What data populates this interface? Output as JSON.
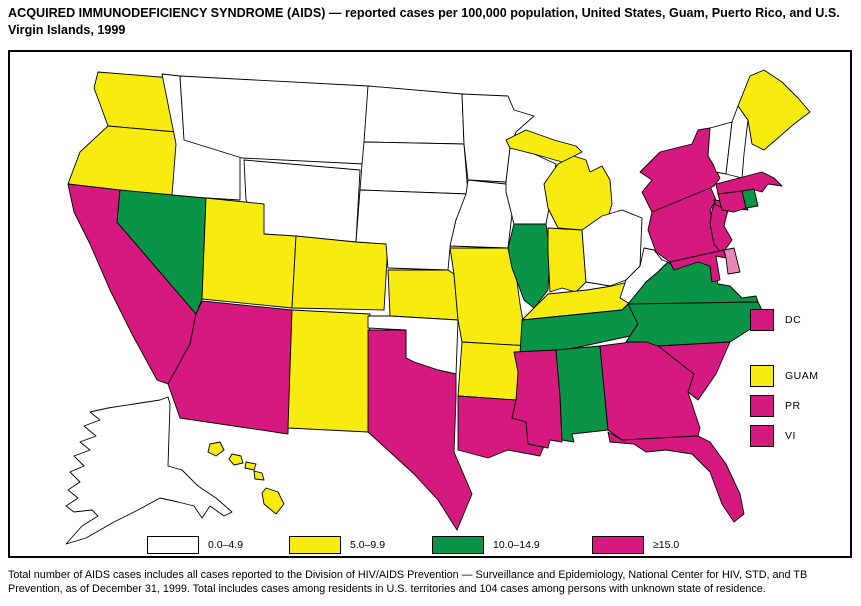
{
  "title": "ACQUIRED IMMUNODEFICIENCY SYNDROME (AIDS) — reported cases per 100,000 population, United States, Guam, Puerto Rico, and U.S. Virgin Islands, 1999",
  "footnote": "Total number of AIDS cases includes all cases reported to the Division of HIV/AIDS Prevention — Surveillance and Epidemiology, National Center for HIV, STD, and TB Prevention, as of December 31, 1999. Total includes cases among residents in U.S. territories and 104 cases among persons with unknown state of residence.",
  "colors": {
    "outline": "#000000",
    "background": "#ffffff",
    "bin1": "#ffffff",
    "bin2": "#f7eb10",
    "bin3": "#0a9447",
    "bin4": "#d6197f"
  },
  "chart_data": {
    "type": "heatmap",
    "subtype": "choropleth-us-map",
    "title": "ACQUIRED IMMUNODEFICIENCY SYNDROME (AIDS) — reported cases per 100,000 population, United States, Guam, Puerto Rico, and U.S. Virgin Islands, 1999",
    "unit": "reported AIDS cases per 100,000 population",
    "legend_position": "bottom",
    "bins": [
      {
        "label": "0.0–4.9",
        "color": "#ffffff"
      },
      {
        "label": "5.0–9.9",
        "color": "#f7eb10"
      },
      {
        "label": "10.0–14.9",
        "color": "#0a9447"
      },
      {
        "label": "≥15.0",
        "color": "#d6197f"
      }
    ],
    "regions": {
      "WA": "5.0–9.9",
      "OR": "5.0–9.9",
      "CA": "≥15.0",
      "NV": "10.0–14.9",
      "ID": "0.0–4.9",
      "MT": "0.0–4.9",
      "WY": "0.0–4.9",
      "UT": "5.0–9.9",
      "CO": "5.0–9.9",
      "AZ": "≥15.0",
      "NM": "5.0–9.9",
      "ND": "0.0–4.9",
      "SD": "0.0–4.9",
      "NE": "0.0–4.9",
      "KS": "5.0–9.9",
      "OK": "0.0–4.9",
      "TX": "≥15.0",
      "MN": "0.0–4.9",
      "IA": "0.0–4.9",
      "MO": "5.0–9.9",
      "AR": "5.0–9.9",
      "LA": "≥15.0",
      "WI": "0.0–4.9",
      "IL": "10.0–14.9",
      "MI": "5.0–9.9",
      "IN": "5.0–9.9",
      "OH": "0.0–4.9",
      "KY": "5.0–9.9",
      "TN": "10.0–14.9",
      "MS": "≥15.0",
      "AL": "10.0–14.9",
      "GA": "≥15.0",
      "FL": "≥15.0",
      "SC": "≥15.0",
      "NC": "10.0–14.9",
      "VA": "10.0–14.9",
      "WV": "0.0–4.9",
      "MD": "≥15.0",
      "DE": "≥15.0",
      "NJ": "≥15.0",
      "PA": "≥15.0",
      "NY": "≥15.0",
      "CT": "≥15.0",
      "RI": "10.0–14.9",
      "MA": "≥15.0",
      "VT": "0.0–4.9",
      "NH": "0.0–4.9",
      "ME": "5.0–9.9",
      "AK": "0.0–4.9",
      "HI": "5.0–9.9"
    },
    "territories": [
      {
        "label": "DC",
        "value": "≥15.0"
      },
      {
        "label": "GUAM",
        "value": "5.0–9.9"
      },
      {
        "label": "PR",
        "value": "≥15.0"
      },
      {
        "label": "VI",
        "value": "≥15.0"
      }
    ]
  }
}
